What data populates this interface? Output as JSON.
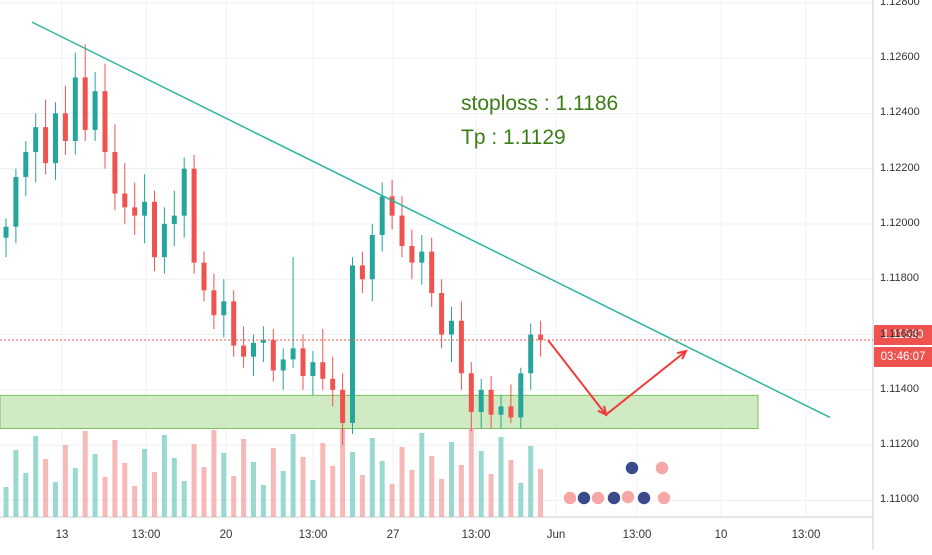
{
  "chart_data": {
    "type": "candlestick",
    "instrument_pair_hint": "",
    "y_axis": {
      "ticks": [
        "1.11000",
        "1.11200",
        "1.11400",
        "1.11600",
        "1.11800",
        "1.12000",
        "1.12200",
        "1.12400",
        "1.12600",
        "1.12800"
      ],
      "range": [
        1.1094,
        1.1281
      ]
    },
    "x_axis": {
      "ticks": [
        "13",
        "13:00",
        "20",
        "13:00",
        "27",
        "13:00",
        "Jun",
        "13:00",
        "10",
        "13:00"
      ]
    },
    "current_price_label": "1.11580",
    "countdown_label": "03:46:07",
    "annotations": {
      "stoploss": "stoploss : 1.1186",
      "tp": "Tp : 1.1129"
    },
    "support_zone": [
      1.1126,
      1.1138
    ],
    "trendline": [
      {
        "x": 32,
        "price": 1.1273
      },
      {
        "x": 830,
        "price": 1.113
      }
    ],
    "projection_path": [
      {
        "x": 548,
        "price": 1.1158
      },
      {
        "x": 606,
        "price": 1.1131
      },
      {
        "x": 686,
        "price": 1.1154
      }
    ],
    "candles_ohlc": [
      [
        1.1195,
        1.1202,
        1.1188,
        1.1199
      ],
      [
        1.1199,
        1.122,
        1.1193,
        1.1217
      ],
      [
        1.1217,
        1.123,
        1.121,
        1.1226
      ],
      [
        1.1226,
        1.124,
        1.1215,
        1.1235
      ],
      [
        1.1235,
        1.1245,
        1.1218,
        1.1222
      ],
      [
        1.1222,
        1.1244,
        1.1216,
        1.124
      ],
      [
        1.124,
        1.125,
        1.1225,
        1.123
      ],
      [
        1.123,
        1.1262,
        1.1225,
        1.1253
      ],
      [
        1.1253,
        1.1265,
        1.123,
        1.1234
      ],
      [
        1.1234,
        1.1255,
        1.123,
        1.1248
      ],
      [
        1.1248,
        1.1258,
        1.122,
        1.1226
      ],
      [
        1.1226,
        1.1236,
        1.1205,
        1.1211
      ],
      [
        1.1211,
        1.1222,
        1.12,
        1.1206
      ],
      [
        1.1206,
        1.1215,
        1.1196,
        1.1203
      ],
      [
        1.1203,
        1.1218,
        1.1193,
        1.1208
      ],
      [
        1.1208,
        1.1212,
        1.1183,
        1.1188
      ],
      [
        1.1188,
        1.1206,
        1.1182,
        1.12
      ],
      [
        1.12,
        1.1212,
        1.1192,
        1.1203
      ],
      [
        1.1203,
        1.1224,
        1.1195,
        1.122
      ],
      [
        1.122,
        1.1225,
        1.1182,
        1.1186
      ],
      [
        1.1186,
        1.119,
        1.1172,
        1.1176
      ],
      [
        1.1176,
        1.1182,
        1.1162,
        1.1167
      ],
      [
        1.1167,
        1.118,
        1.1159,
        1.1172
      ],
      [
        1.1172,
        1.1176,
        1.1152,
        1.1156
      ],
      [
        1.1156,
        1.1163,
        1.1148,
        1.1152
      ],
      [
        1.1152,
        1.116,
        1.1145,
        1.1157
      ],
      [
        1.1157,
        1.1163,
        1.115,
        1.1158
      ],
      [
        1.1158,
        1.1162,
        1.1143,
        1.1147
      ],
      [
        1.1147,
        1.1155,
        1.114,
        1.1151
      ],
      [
        1.1151,
        1.1188,
        1.1148,
        1.1155
      ],
      [
        1.1155,
        1.116,
        1.114,
        1.1145
      ],
      [
        1.1145,
        1.1154,
        1.1138,
        1.115
      ],
      [
        1.115,
        1.1162,
        1.114,
        1.1144
      ],
      [
        1.1144,
        1.1152,
        1.1134,
        1.114
      ],
      [
        1.114,
        1.1146,
        1.112,
        1.1128
      ],
      [
        1.1128,
        1.1188,
        1.1124,
        1.1185
      ],
      [
        1.1185,
        1.119,
        1.1175,
        1.118
      ],
      [
        1.118,
        1.12,
        1.1172,
        1.1196
      ],
      [
        1.1196,
        1.1215,
        1.119,
        1.121
      ],
      [
        1.121,
        1.1216,
        1.1198,
        1.1203
      ],
      [
        1.1203,
        1.121,
        1.1188,
        1.1192
      ],
      [
        1.1192,
        1.1198,
        1.118,
        1.1186
      ],
      [
        1.1186,
        1.1196,
        1.1178,
        1.119
      ],
      [
        1.119,
        1.1195,
        1.117,
        1.1175
      ],
      [
        1.1175,
        1.118,
        1.1155,
        1.116
      ],
      [
        1.116,
        1.117,
        1.115,
        1.1165
      ],
      [
        1.1165,
        1.1172,
        1.114,
        1.1146
      ],
      [
        1.1146,
        1.115,
        1.1125,
        1.1132
      ],
      [
        1.1132,
        1.1144,
        1.1126,
        1.114
      ],
      [
        1.114,
        1.1145,
        1.1126,
        1.1131
      ],
      [
        1.1131,
        1.1138,
        1.1126,
        1.1134
      ],
      [
        1.1134,
        1.1142,
        1.1128,
        1.113
      ],
      [
        1.113,
        1.1148,
        1.1126,
        1.1146
      ],
      [
        1.1146,
        1.1164,
        1.114,
        1.116
      ],
      [
        1.116,
        1.1165,
        1.1152,
        1.1158
      ]
    ]
  },
  "icons": [
    "calendar-event-icons",
    "flag-event-icons"
  ]
}
